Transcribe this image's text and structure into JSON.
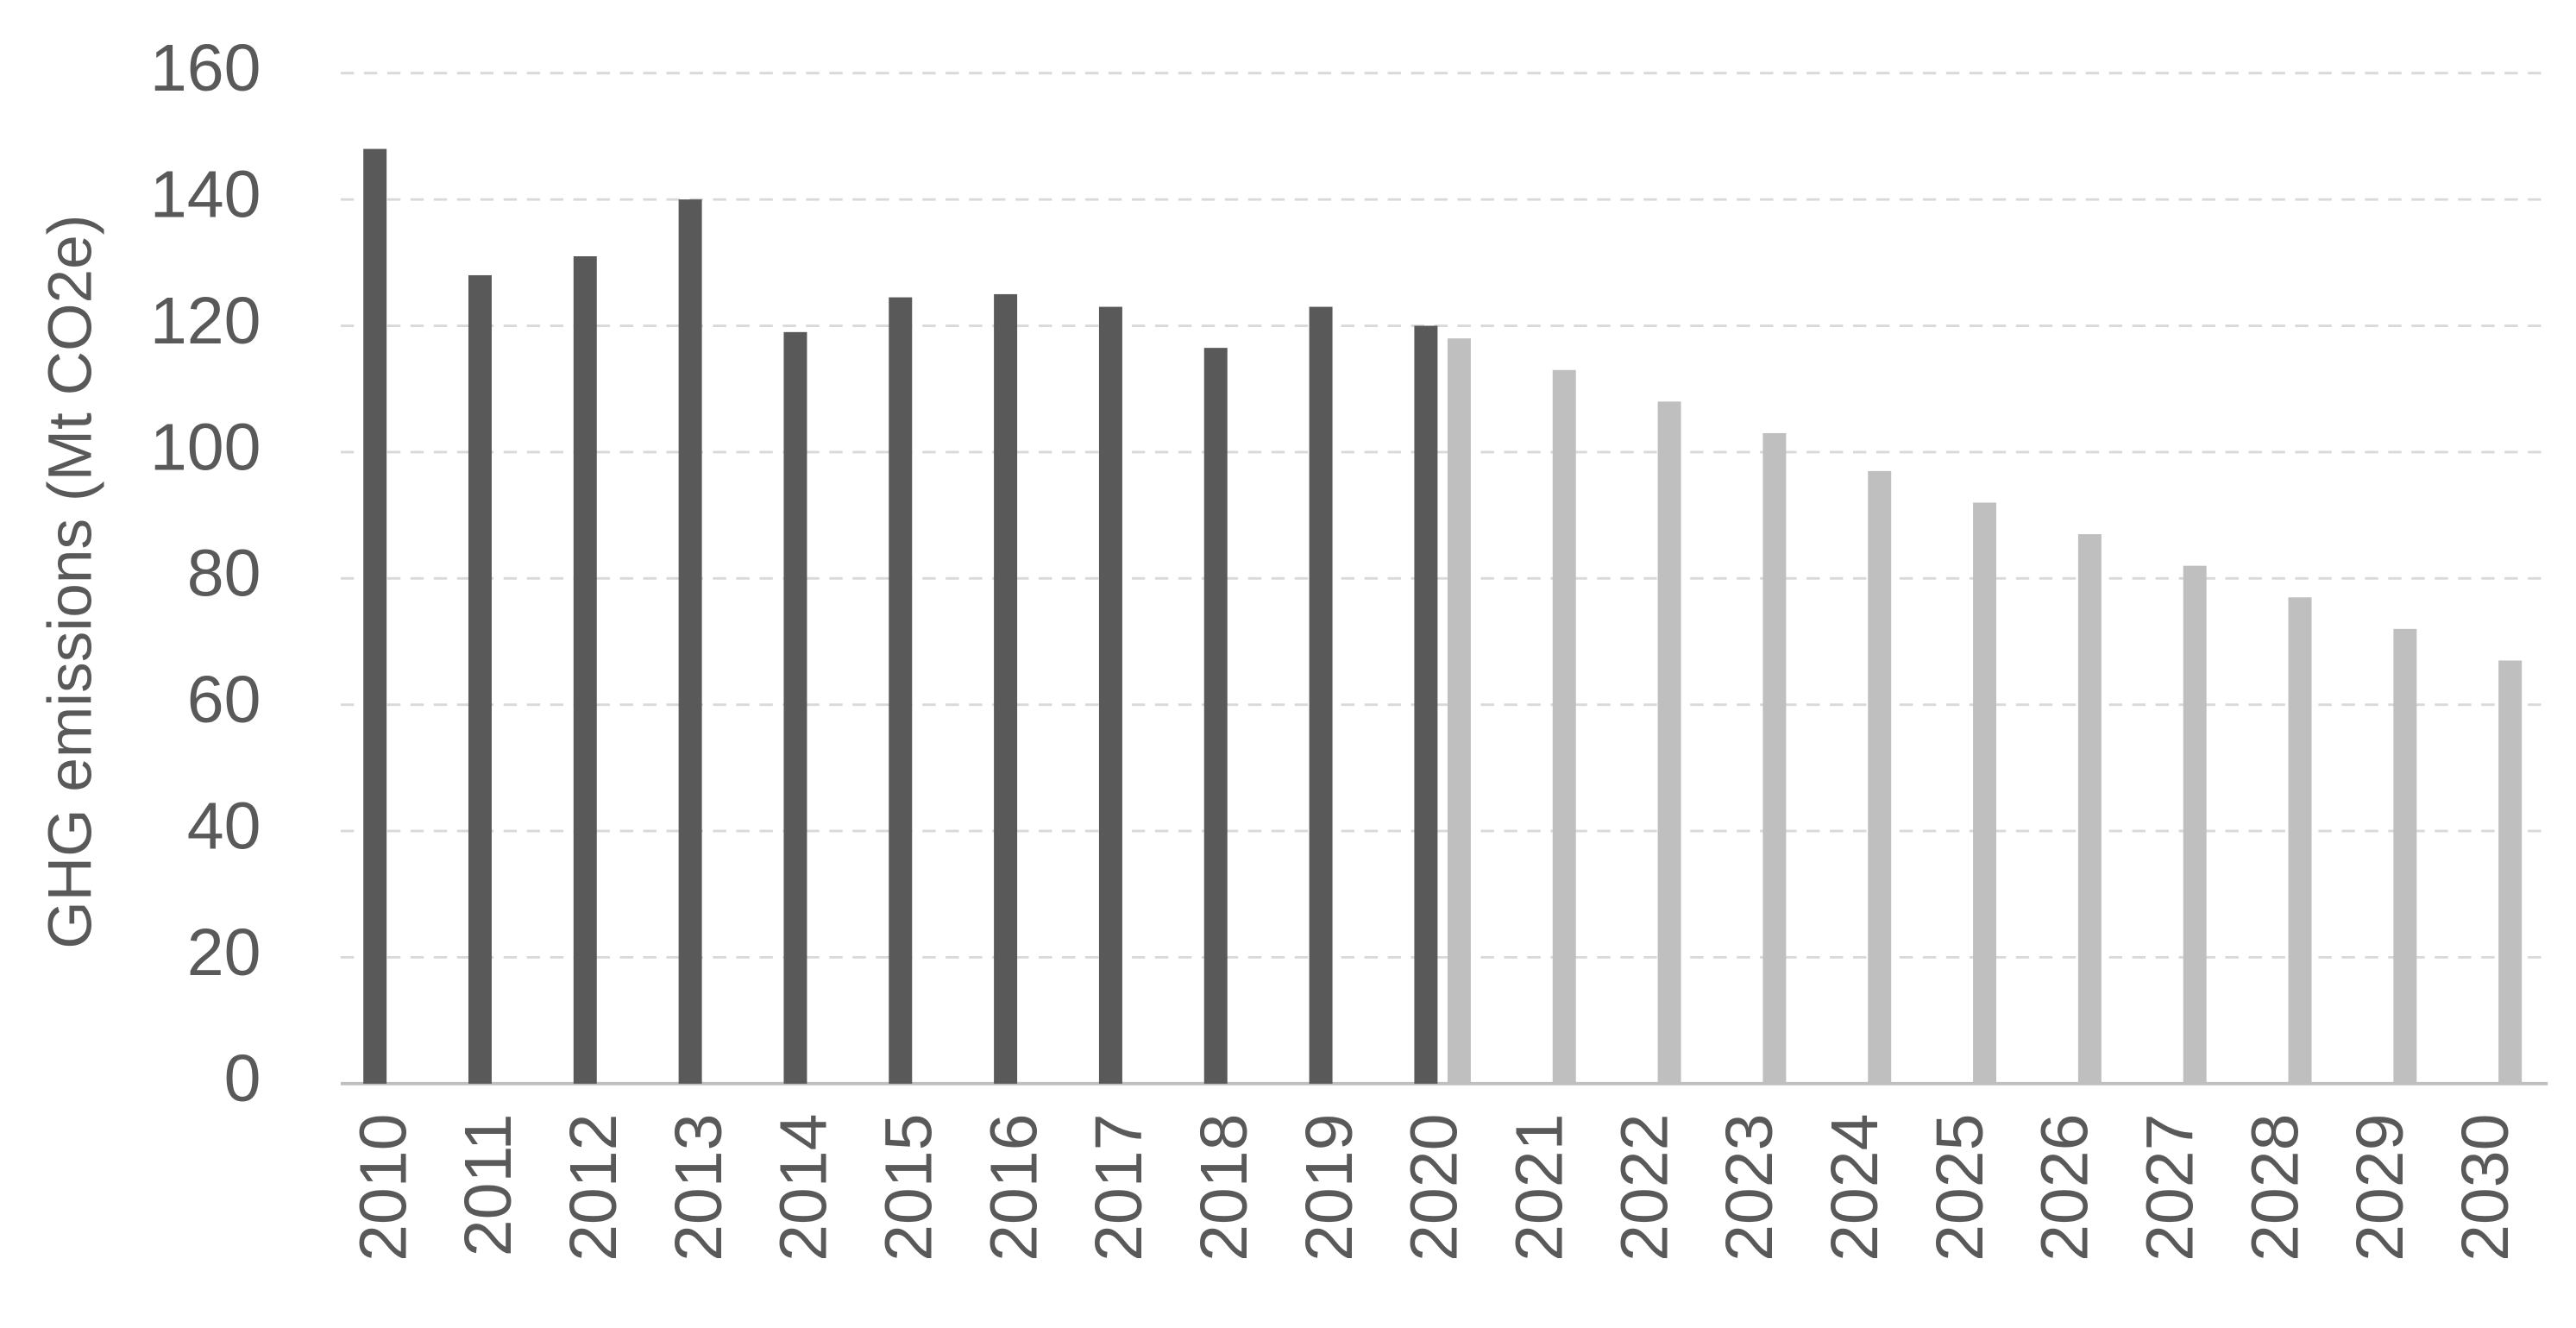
{
  "chart_data": {
    "type": "bar",
    "y_label": "GHG emissions (Mt CO2e)",
    "categories": [
      "2010",
      "2011",
      "2012",
      "2013",
      "2014",
      "2015",
      "2016",
      "2017",
      "2018",
      "2019",
      "2020",
      "2021",
      "2022",
      "2023",
      "2024",
      "2025",
      "2026",
      "2027",
      "2028",
      "2029",
      "2030"
    ],
    "series": [
      {
        "color": "#595959",
        "values": [
          148,
          128,
          131,
          140,
          119,
          124.5,
          125,
          123,
          116.5,
          123,
          120,
          null,
          null,
          null,
          null,
          null,
          null,
          null,
          null,
          null,
          null
        ]
      },
      {
        "color": "#bfbfbf",
        "values": [
          null,
          null,
          null,
          null,
          null,
          null,
          null,
          null,
          null,
          null,
          118,
          113,
          108,
          103,
          97,
          92,
          87,
          82,
          77,
          72,
          67
        ]
      }
    ],
    "ylim": [
      0,
      160
    ],
    "yticks": [
      0,
      20,
      40,
      60,
      80,
      100,
      120,
      140,
      160
    ],
    "grid": true
  }
}
